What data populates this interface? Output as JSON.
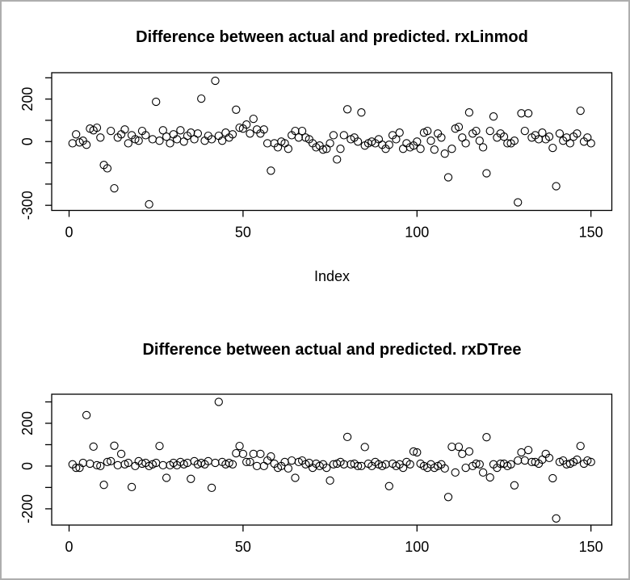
{
  "figure": {
    "background": "#ffffff",
    "border_color": "#aeaeae",
    "foreground": "#000000"
  },
  "chart_data": [
    {
      "type": "scatter",
      "title": "Difference between actual and predicted. rxLinmod",
      "xlabel": "Index",
      "ylabel": "",
      "marker": "open-circle",
      "grid": false,
      "legend": null,
      "x_values": "index 1 to 150",
      "xlim": [
        -5,
        156
      ],
      "ylim": [
        -324,
        324
      ],
      "xticks": [
        {
          "value": 0,
          "label": "0"
        },
        {
          "value": 50,
          "label": "50"
        },
        {
          "value": 100,
          "label": "100"
        },
        {
          "value": 150,
          "label": "150"
        }
      ],
      "yticks": [
        {
          "value": 300,
          "label": ""
        },
        {
          "value": 200,
          "label": "200"
        },
        {
          "value": 100,
          "label": ""
        },
        {
          "value": 0,
          "label": "0"
        },
        {
          "value": -100,
          "label": ""
        },
        {
          "value": -200,
          "label": ""
        },
        {
          "value": -300,
          "label": "-300"
        }
      ],
      "values": [
        -8,
        34,
        -4,
        4,
        -15,
        61,
        53,
        65,
        19,
        -110,
        -126,
        50,
        -220,
        19,
        34,
        57,
        -8,
        30,
        11,
        4,
        50,
        30,
        -295,
        11,
        187,
        4,
        53,
        23,
        -8,
        34,
        11,
        53,
        0,
        27,
        42,
        11,
        38,
        202,
        4,
        27,
        11,
        286,
        27,
        4,
        42,
        19,
        34,
        150,
        65,
        61,
        80,
        38,
        107,
        57,
        38,
        57,
        -8,
        -137,
        -8,
        -27,
        0,
        -8,
        -34,
        30,
        50,
        19,
        50,
        19,
        11,
        -8,
        -27,
        -19,
        -38,
        -34,
        -8,
        30,
        -84,
        -34,
        30,
        152,
        11,
        19,
        0,
        137,
        -19,
        -8,
        0,
        -8,
        11,
        -15,
        -34,
        -15,
        30,
        11,
        42,
        -34,
        -8,
        -27,
        -19,
        0,
        -34,
        42,
        50,
        4,
        -38,
        38,
        19,
        -57,
        -168,
        -34,
        61,
        69,
        19,
        -8,
        137,
        38,
        50,
        4,
        -27,
        -149,
        50,
        118,
        19,
        38,
        23,
        -8,
        -8,
        4,
        -286,
        133,
        50,
        133,
        19,
        30,
        11,
        42,
        11,
        23,
        -30,
        -210,
        38,
        4,
        19,
        -8,
        23,
        38,
        145,
        0,
        19,
        -8
      ]
    },
    {
      "type": "scatter",
      "title": "Difference between actual and predicted. rxDTree",
      "xlabel": "",
      "ylabel": "",
      "marker": "open-circle",
      "grid": false,
      "legend": null,
      "x_values": "index 1 to 150",
      "xlim": [
        -5,
        156
      ],
      "ylim": [
        -276,
        336
      ],
      "xticks": [
        {
          "value": 0,
          "label": "0"
        },
        {
          "value": 50,
          "label": "50"
        },
        {
          "value": 100,
          "label": "100"
        },
        {
          "value": 150,
          "label": "150"
        }
      ],
      "yticks": [
        {
          "value": 300,
          "label": ""
        },
        {
          "value": 200,
          "label": "200"
        },
        {
          "value": 100,
          "label": ""
        },
        {
          "value": 0,
          "label": "0"
        },
        {
          "value": -100,
          "label": ""
        },
        {
          "value": -200,
          "label": "-200"
        }
      ],
      "values": [
        8,
        -8,
        -8,
        15,
        238,
        11,
        91,
        4,
        0,
        -88,
        19,
        23,
        95,
        4,
        57,
        8,
        15,
        -98,
        0,
        23,
        11,
        15,
        0,
        8,
        15,
        94,
        4,
        -55,
        4,
        15,
        4,
        19,
        8,
        15,
        -60,
        23,
        8,
        15,
        8,
        23,
        -102,
        15,
        300,
        19,
        8,
        15,
        8,
        60,
        94,
        57,
        19,
        19,
        57,
        0,
        57,
        0,
        26,
        45,
        11,
        -8,
        0,
        19,
        -11,
        26,
        -55,
        19,
        26,
        8,
        15,
        -8,
        11,
        0,
        8,
        -8,
        -68,
        8,
        11,
        19,
        8,
        136,
        8,
        11,
        0,
        0,
        89,
        11,
        0,
        19,
        8,
        0,
        8,
        -94,
        11,
        0,
        8,
        -8,
        19,
        8,
        68,
        64,
        11,
        0,
        -8,
        8,
        -8,
        0,
        8,
        -11,
        -145,
        90,
        -30,
        90,
        57,
        -8,
        68,
        0,
        11,
        8,
        -30,
        135,
        -53,
        8,
        -8,
        11,
        11,
        0,
        8,
        -90,
        26,
        64,
        26,
        75,
        19,
        19,
        11,
        30,
        57,
        38,
        -57,
        -245,
        19,
        26,
        8,
        11,
        19,
        30,
        94,
        11,
        26,
        19
      ]
    }
  ]
}
